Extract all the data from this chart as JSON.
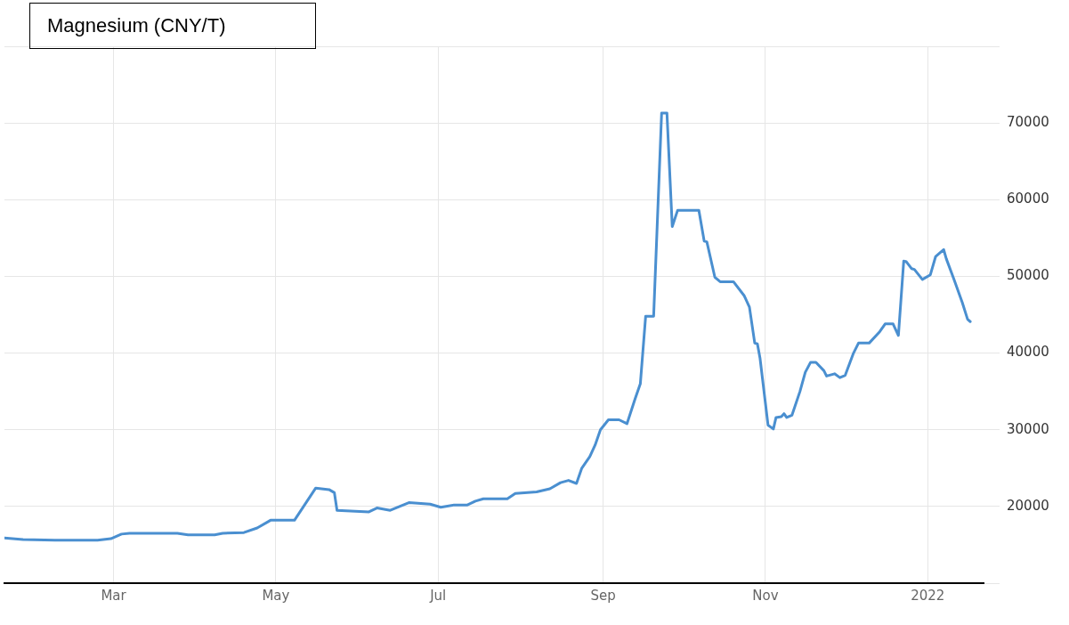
{
  "chart_data": {
    "type": "line",
    "title": "Magnesium (CNY/T)",
    "xlim": [
      "2021-01-19",
      "2022-01-22"
    ],
    "xticks": [
      {
        "value": "2021-03-01",
        "label": "Mar"
      },
      {
        "value": "2021-05-01",
        "label": "May"
      },
      {
        "value": "2021-07-01",
        "label": "Jul"
      },
      {
        "value": "2021-09-01",
        "label": "Sep"
      },
      {
        "value": "2021-11-01",
        "label": "Nov"
      },
      {
        "value": "2022-01-01",
        "label": "2022"
      }
    ],
    "ylim": [
      10000,
      80000
    ],
    "yticks": [
      {
        "value": 10000,
        "label": null
      },
      20000,
      30000,
      40000,
      50000,
      60000,
      70000,
      {
        "value": 80000,
        "label": null
      }
    ],
    "grid": true,
    "legend": false,
    "marker": "none",
    "line_style": "solid",
    "series": [
      {
        "color": "#4a8fd0",
        "x": [
          "2021-01-19",
          "2021-01-26",
          "2021-02-07",
          "2021-02-23",
          "2021-02-28",
          "2021-03-04",
          "2021-03-07",
          "2021-03-25",
          "2021-03-29",
          "2021-04-08",
          "2021-04-11",
          "2021-04-19",
          "2021-04-24",
          "2021-04-28",
          "2021-04-29",
          "2021-05-08",
          "2021-05-16",
          "2021-05-21",
          "2021-05-23",
          "2021-05-24",
          "2021-06-05",
          "2021-06-08",
          "2021-06-13",
          "2021-06-20",
          "2021-06-28",
          "2021-07-02",
          "2021-07-07",
          "2021-07-12",
          "2021-07-15",
          "2021-07-18",
          "2021-07-27",
          "2021-07-30",
          "2021-08-07",
          "2021-08-12",
          "2021-08-16",
          "2021-08-19",
          "2021-08-22",
          "2021-08-24",
          "2021-08-27",
          "2021-08-29",
          "2021-08-31",
          "2021-09-03",
          "2021-09-07",
          "2021-09-10",
          "2021-09-13",
          "2021-09-15",
          "2021-09-17",
          "2021-09-20",
          "2021-09-23",
          "2021-09-25",
          "2021-09-27",
          "2021-09-29",
          "2021-10-07",
          "2021-10-09",
          "2021-10-10",
          "2021-10-13",
          "2021-10-15",
          "2021-10-20",
          "2021-10-24",
          "2021-10-26",
          "2021-10-28",
          "2021-10-29",
          "2021-10-30",
          "2021-11-02",
          "2021-11-04",
          "2021-11-05",
          "2021-11-07",
          "2021-11-08",
          "2021-11-09",
          "2021-11-11",
          "2021-11-14",
          "2021-11-16",
          "2021-11-18",
          "2021-11-20",
          "2021-11-23",
          "2021-11-24",
          "2021-11-27",
          "2021-11-29",
          "2021-12-01",
          "2021-12-04",
          "2021-12-06",
          "2021-12-10",
          "2021-12-14",
          "2021-12-16",
          "2021-12-19",
          "2021-12-21",
          "2021-12-23",
          "2021-12-24",
          "2021-12-26",
          "2021-12-27",
          "2021-12-30",
          "2022-01-02",
          "2022-01-04",
          "2022-01-07",
          "2022-01-08",
          "2022-01-11",
          "2022-01-14",
          "2022-01-16",
          "2022-01-17"
        ],
        "values": [
          15900,
          15700,
          15600,
          15600,
          15800,
          16400,
          16500,
          16500,
          16300,
          16300,
          16500,
          16600,
          17200,
          18000,
          18200,
          18200,
          22400,
          22200,
          21800,
          19500,
          19300,
          19800,
          19500,
          20500,
          20300,
          19900,
          20200,
          20200,
          20700,
          21000,
          21000,
          21700,
          21900,
          22300,
          23100,
          23400,
          23000,
          25000,
          26500,
          28000,
          30000,
          31300,
          31300,
          30800,
          34000,
          36000,
          44800,
          44800,
          71300,
          71300,
          56500,
          58600,
          58600,
          54600,
          54500,
          49900,
          49300,
          49300,
          47500,
          46000,
          41300,
          41200,
          39300,
          30600,
          30100,
          31600,
          31700,
          32100,
          31600,
          31900,
          35000,
          37500,
          38800,
          38800,
          37700,
          37000,
          37300,
          36800,
          37100,
          39900,
          41300,
          41300,
          42800,
          43800,
          43800,
          42300,
          52000,
          51900,
          51000,
          50900,
          49600,
          50200,
          52600,
          53500,
          52300,
          49500,
          46600,
          44400,
          44100
        ]
      }
    ]
  }
}
